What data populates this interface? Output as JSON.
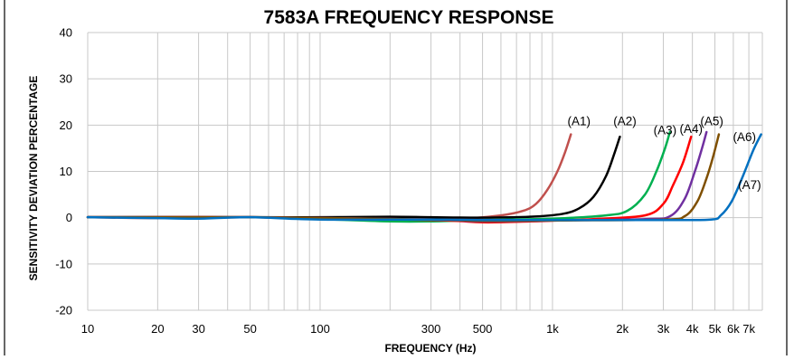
{
  "chart_data": {
    "type": "line",
    "title": "7583A FREQUENCY RESPONSE",
    "xlabel": "FREQUENCY (Hz)",
    "ylabel": "SENSITIVITY DEVIATION PERCENTAGE",
    "xscale": "log",
    "xlim": [
      10,
      8000
    ],
    "ylim": [
      -20,
      40
    ],
    "grid": true,
    "legend": "none",
    "xticks": [
      {
        "value": 10,
        "label": "10"
      },
      {
        "value": 20,
        "label": "20"
      },
      {
        "value": 30,
        "label": "30"
      },
      {
        "value": 50,
        "label": "50"
      },
      {
        "value": 100,
        "label": "100"
      },
      {
        "value": 300,
        "label": "300"
      },
      {
        "value": 500,
        "label": "500"
      },
      {
        "value": 1000,
        "label": "1k"
      },
      {
        "value": 2000,
        "label": "2k"
      },
      {
        "value": 3000,
        "label": "3k"
      },
      {
        "value": 4000,
        "label": "4k"
      },
      {
        "value": 5000,
        "label": "5k"
      },
      {
        "value": 6000,
        "label": "6k"
      },
      {
        "value": 7000,
        "label": "7k"
      }
    ],
    "xgrid": [
      10,
      20,
      30,
      40,
      50,
      60,
      70,
      80,
      90,
      100,
      200,
      300,
      400,
      500,
      600,
      700,
      800,
      900,
      1000,
      2000,
      3000,
      4000,
      5000,
      6000,
      7000,
      8000
    ],
    "yticks": [
      -20,
      -10,
      0,
      10,
      20,
      30,
      40
    ],
    "series": [
      {
        "name": "(A1)",
        "color": "#c0504d",
        "points": [
          [
            10,
            0.1
          ],
          [
            20,
            -0.1
          ],
          [
            50,
            0.1
          ],
          [
            100,
            0
          ],
          [
            200,
            0
          ],
          [
            400,
            -0.2
          ],
          [
            600,
            0.5
          ],
          [
            750,
            1.5
          ],
          [
            850,
            3
          ],
          [
            950,
            6
          ],
          [
            1050,
            10
          ],
          [
            1130,
            14
          ],
          [
            1200,
            18
          ]
        ]
      },
      {
        "name": "(A2)",
        "color": "#000000",
        "points": [
          [
            10,
            0.1
          ],
          [
            50,
            0.1
          ],
          [
            100,
            0.1
          ],
          [
            200,
            0.2
          ],
          [
            300,
            0.1
          ],
          [
            500,
            0
          ],
          [
            800,
            0.2
          ],
          [
            1100,
            0.8
          ],
          [
            1300,
            2
          ],
          [
            1500,
            4.5
          ],
          [
            1700,
            9
          ],
          [
            1850,
            14
          ],
          [
            1950,
            17.5
          ]
        ]
      },
      {
        "name": "(A3)",
        "color": "#00b050",
        "points": [
          [
            10,
            0.1
          ],
          [
            50,
            0.1
          ],
          [
            100,
            -0.3
          ],
          [
            200,
            -0.8
          ],
          [
            300,
            -0.8
          ],
          [
            500,
            -0.5
          ],
          [
            1000,
            -0.2
          ],
          [
            1700,
            0.5
          ],
          [
            2100,
            1.5
          ],
          [
            2500,
            5
          ],
          [
            2800,
            10
          ],
          [
            3050,
            15
          ],
          [
            3200,
            18.5
          ]
        ]
      },
      {
        "name": "(A4)",
        "color": "#ff0000",
        "points": [
          [
            10,
            0.1
          ],
          [
            50,
            0.1
          ],
          [
            300,
            -0.5
          ],
          [
            500,
            -1
          ],
          [
            800,
            -0.8
          ],
          [
            1500,
            -0.3
          ],
          [
            2500,
            0.5
          ],
          [
            3000,
            3
          ],
          [
            3300,
            7
          ],
          [
            3650,
            12
          ],
          [
            3950,
            17.5
          ]
        ]
      },
      {
        "name": "(A5)",
        "color": "#7030a0",
        "points": [
          [
            10,
            0.1
          ],
          [
            50,
            0.1
          ],
          [
            300,
            -0.4
          ],
          [
            500,
            -0.8
          ],
          [
            1000,
            -0.6
          ],
          [
            2500,
            -0.3
          ],
          [
            3200,
            0.3
          ],
          [
            3700,
            4
          ],
          [
            4100,
            10
          ],
          [
            4400,
            15
          ],
          [
            4600,
            18.5
          ]
        ]
      },
      {
        "name": "(A6)",
        "color": "#7f4f00",
        "points": [
          [
            10,
            0.1
          ],
          [
            50,
            0.1
          ],
          [
            300,
            -0.4
          ],
          [
            500,
            -0.7
          ],
          [
            1000,
            -0.6
          ],
          [
            3000,
            -0.4
          ],
          [
            3700,
            0.3
          ],
          [
            4200,
            3.5
          ],
          [
            4600,
            8.5
          ],
          [
            4900,
            13
          ],
          [
            5200,
            18
          ]
        ]
      },
      {
        "name": "(A7)",
        "color": "#0070c0",
        "points": [
          [
            10,
            0.1
          ],
          [
            20,
            -0.1
          ],
          [
            30,
            -0.2
          ],
          [
            50,
            0.1
          ],
          [
            100,
            -0.4
          ],
          [
            300,
            -0.4
          ],
          [
            500,
            -0.5
          ],
          [
            1000,
            -0.5
          ],
          [
            3000,
            -0.5
          ],
          [
            4800,
            -0.4
          ],
          [
            5300,
            0.5
          ],
          [
            5900,
            3.5
          ],
          [
            6600,
            9
          ],
          [
            7300,
            14.5
          ],
          [
            7900,
            18
          ]
        ]
      }
    ],
    "annotations": [
      {
        "text": "(A1)",
        "x": 1300,
        "y": 20
      },
      {
        "text": "(A2)",
        "x": 2050,
        "y": 20
      },
      {
        "text": "(A3)",
        "x": 3050,
        "y": 18
      },
      {
        "text": "(A4)",
        "x": 3950,
        "y": 18.3
      },
      {
        "text": "(A5)",
        "x": 4850,
        "y": 20
      },
      {
        "text": "(A6)",
        "x": 6700,
        "y": 16.5
      },
      {
        "text": "(A7)",
        "x": 7050,
        "y": 6.2
      }
    ]
  }
}
